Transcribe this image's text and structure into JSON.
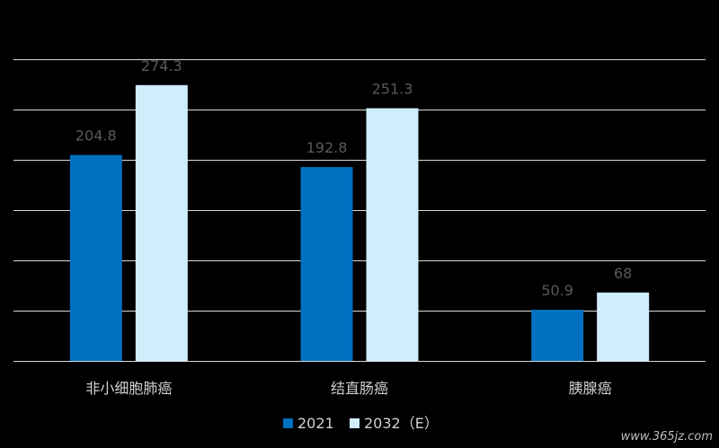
{
  "chart_data": {
    "type": "bar",
    "categories": [
      "非小细胞肺癌",
      "结直肠癌",
      "胰腺癌"
    ],
    "series": [
      {
        "name": "2021",
        "values": [
          204.8,
          192.8,
          50.9
        ],
        "color": "#0070c0"
      },
      {
        "name": "2032（E）",
        "values": [
          274.3,
          251.3,
          68
        ],
        "color": "#cfeefc"
      }
    ],
    "ylim": [
      0,
      300
    ],
    "grid": true,
    "legend_position": "bottom"
  },
  "watermark": "www.365jz.com"
}
